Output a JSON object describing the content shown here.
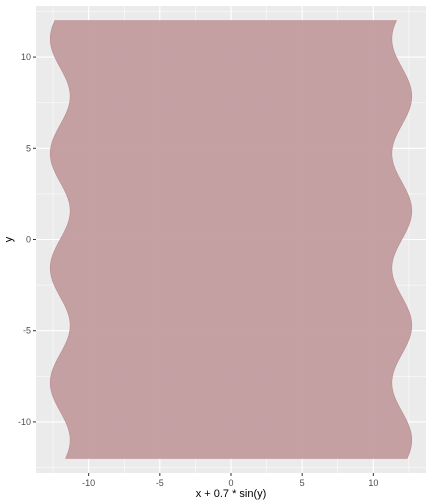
{
  "chart_data": {
    "type": "area",
    "title": "",
    "xlabel": "x + 0.7 * sin(y)",
    "ylabel": "y",
    "xlim": [
      -13.7,
      13.7
    ],
    "ylim": [
      -12.8,
      12.8
    ],
    "xticks": [
      -10,
      -5,
      0,
      5,
      10
    ],
    "xtick_labels": [
      "-10",
      "-5",
      "0",
      "5",
      "10"
    ],
    "yticks": [
      -10,
      -5,
      0,
      5,
      10
    ],
    "ytick_labels": [
      "-10",
      "-5",
      "0",
      "5",
      "10"
    ],
    "region": {
      "description_expr": "x + 0.7 * sin(y)",
      "x_range": [
        -12,
        12
      ],
      "y_range": [
        -12,
        12
      ],
      "amplitude": 0.7
    },
    "grid": true,
    "legend": "none",
    "colors": {
      "panel": "#ebebeb",
      "grid_major": "#ffffff",
      "fill": "#c0999c",
      "fill_stroke": "#b98b8e"
    }
  }
}
